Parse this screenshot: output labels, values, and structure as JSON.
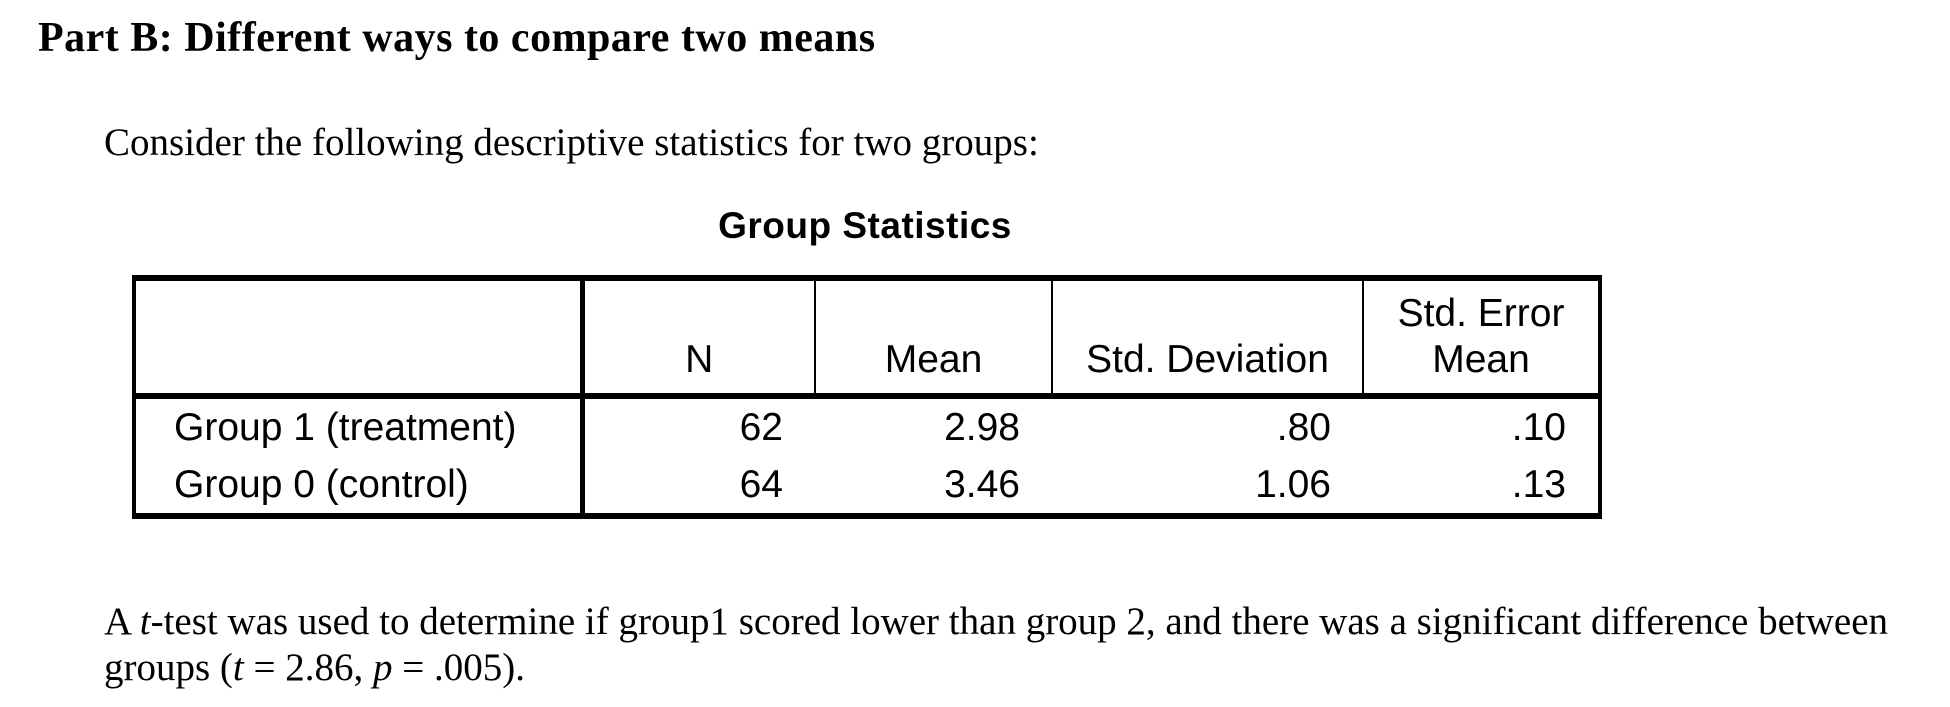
{
  "page": {
    "background_color": "#ffffff",
    "text_color": "#000000"
  },
  "heading": "Part B: Different ways to compare two means",
  "intro": "Consider the following descriptive statistics for two groups:",
  "table": {
    "title": "Group Statistics",
    "headers": [
      "",
      "N",
      "Mean",
      "Std. Deviation",
      "Std. Error\nMean"
    ],
    "rows": [
      {
        "label": "Group 1 (treatment)",
        "n": "62",
        "mean": "2.98",
        "std_deviation": ".80",
        "std_error_mean": ".10"
      },
      {
        "label": "Group 0 (control)",
        "n": "64",
        "mean": "3.46",
        "std_deviation": "1.06",
        "std_error_mean": ".13"
      }
    ]
  },
  "conclusion": {
    "segments": [
      {
        "text": "A "
      },
      {
        "text": "t",
        "italic": true
      },
      {
        "text": "-test was used to determine if group1 scored lower than group 2, and there was a significant difference between groups ("
      },
      {
        "text": "t",
        "italic": true
      },
      {
        "text": " = 2.86, "
      },
      {
        "text": "p",
        "italic": true
      },
      {
        "text": " = .005)."
      }
    ]
  }
}
